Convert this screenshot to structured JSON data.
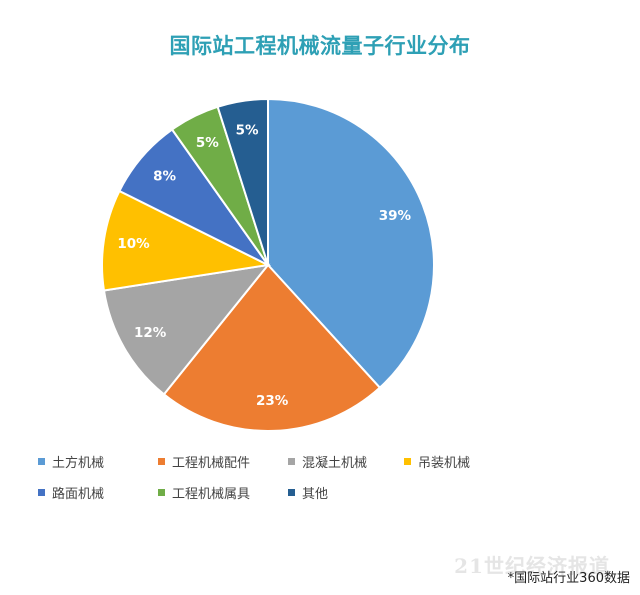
{
  "chart_data": {
    "type": "pie",
    "title": "国际站工程机械流量子行业分布",
    "categories": [
      "土方机械",
      "工程机械配件",
      "混凝土机械",
      "吊装机械",
      "路面机械",
      "工程机械属具",
      "其他"
    ],
    "values": [
      39,
      23,
      12,
      10,
      8,
      5,
      5
    ],
    "value_labels": [
      "39%",
      "23%",
      "12%",
      "10%",
      "8%",
      "5%",
      "5%"
    ],
    "colors": [
      "#5b9bd5",
      "#ed7d31",
      "#a5a5a5",
      "#ffc000",
      "#4472c4",
      "#70ad47",
      "#255e91"
    ],
    "start": "12 o'clock",
    "direction": "clockwise",
    "legend_placement": "bottom"
  },
  "watermark": "21世纪经济报道",
  "source_note": "*国际站行业360数据"
}
